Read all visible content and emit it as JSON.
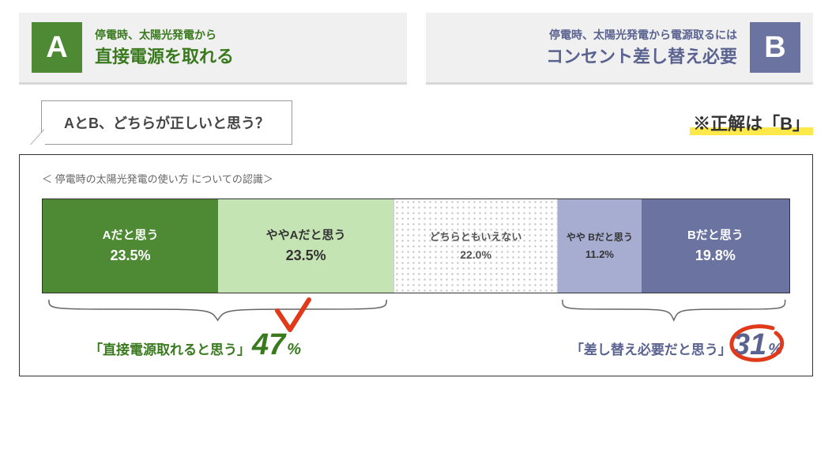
{
  "options": {
    "a": {
      "letter": "A",
      "sub": "停電時、太陽光発電から",
      "main": "直接電源を取れる",
      "badge_color": "#4d8a33",
      "text_color": "#3a7a1e"
    },
    "b": {
      "letter": "B",
      "sub": "停電時、太陽光発電から電源取るには",
      "main": "コンセント差し替え必要",
      "badge_color": "#6b73a0",
      "text_color": "#5a6390"
    }
  },
  "question": "AとB、どちらが正しいと思う？",
  "answer_note": "※正解は「B」",
  "chart": {
    "title": "＜ 停電時の太陽光発電の使い方 についての認識＞",
    "type": "stacked-bar-horizontal",
    "segments": [
      {
        "label": "Aだと思う",
        "value": 23.5,
        "value_text": "23.5%",
        "bg": "#4d8a33",
        "fg": "#ffffff",
        "size": "normal"
      },
      {
        "label": "ややAだと思う",
        "value": 23.5,
        "value_text": "23.5%",
        "bg": "#c5e4b3",
        "fg": "#333333",
        "size": "normal"
      },
      {
        "label": "どちらともいえない",
        "value": 22.0,
        "value_text": "22.0%",
        "bg": "dots",
        "fg": "#555555",
        "size": "mid"
      },
      {
        "label": "やや\nBだと思う",
        "value": 11.2,
        "value_text": "11.2%",
        "bg": "#a7add1",
        "fg": "#333333",
        "size": "small"
      },
      {
        "label": "Bだと思う",
        "value": 19.8,
        "value_text": "19.8%",
        "bg": "#6b73a0",
        "fg": "#ffffff",
        "size": "normal"
      }
    ],
    "border_color": "#333333"
  },
  "totals": {
    "a": {
      "label": "「直接電源取れると思う」",
      "big": "47",
      "pct": "%",
      "color": "#3a7a1e",
      "pct_of_bar": 47.0
    },
    "b": {
      "label": "「差し替え必要だと思う」",
      "big": "31",
      "pct": "%",
      "color": "#5a6390",
      "pct_of_bar": 31.0
    }
  },
  "accent": {
    "marker_red": "#e03a1a",
    "highlight_yellow": "#ffe94a"
  }
}
